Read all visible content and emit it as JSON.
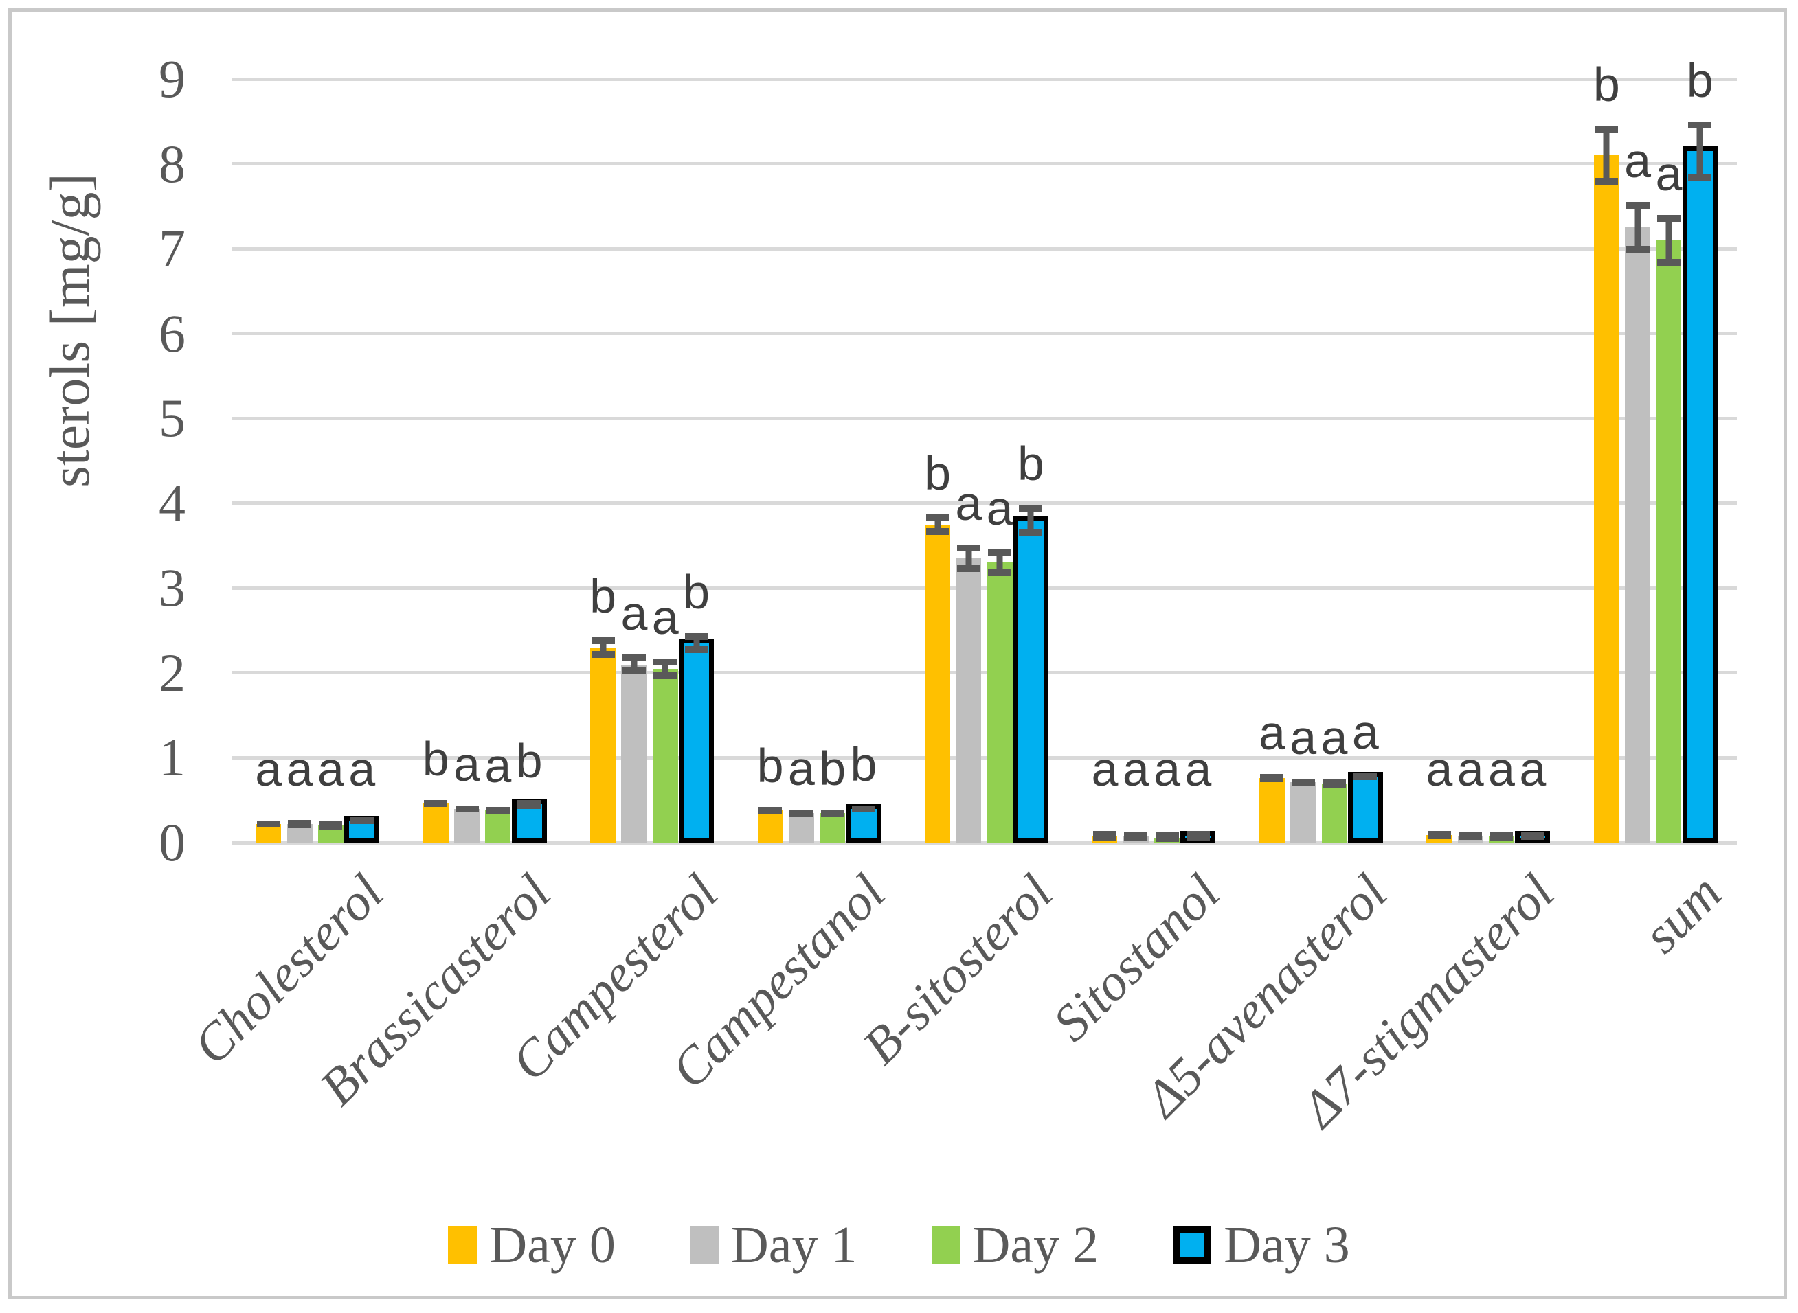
{
  "chart_data": {
    "type": "bar",
    "title": "",
    "xlabel": "",
    "ylabel": "sterols [mg/g]",
    "ylim": [
      0,
      9
    ],
    "ytick_step": 1,
    "yticks": [
      0,
      1,
      2,
      3,
      4,
      5,
      6,
      7,
      8,
      9
    ],
    "grid": true,
    "legend_position": "bottom",
    "categories": [
      "Cholesterol",
      "Brassicasterol",
      "Campesterol",
      "Campestanol",
      "B-sitosterol",
      "Sitostanol",
      "Δ5-avenasterol",
      "Δ7-stigmasterol",
      "sum"
    ],
    "series": [
      {
        "name": "Day 0",
        "color": "#FFC000",
        "values": [
          0.22,
          0.46,
          2.3,
          0.38,
          3.75,
          0.08,
          0.76,
          0.09,
          8.1
        ],
        "errors": [
          0.04,
          0.04,
          0.12,
          0.04,
          0.12,
          0.02,
          0.05,
          0.03,
          0.35
        ],
        "letters": [
          "a",
          "b",
          "b",
          "b",
          "b",
          "a",
          "a",
          "a",
          "b"
        ]
      },
      {
        "name": "Day 1",
        "color": "#BFBFBF",
        "values": [
          0.22,
          0.4,
          2.1,
          0.35,
          3.35,
          0.07,
          0.71,
          0.08,
          7.25
        ],
        "errors": [
          0.03,
          0.04,
          0.12,
          0.04,
          0.16,
          0.02,
          0.04,
          0.03,
          0.3
        ],
        "letters": [
          "a",
          "a",
          "a",
          "a",
          "a",
          "a",
          "a",
          "a",
          "a"
        ]
      },
      {
        "name": "Day 2",
        "color": "#92D050",
        "values": [
          0.2,
          0.38,
          2.05,
          0.35,
          3.3,
          0.06,
          0.7,
          0.07,
          7.1
        ],
        "errors": [
          0.03,
          0.04,
          0.12,
          0.04,
          0.16,
          0.02,
          0.05,
          0.03,
          0.3
        ],
        "letters": [
          "a",
          "a",
          "a",
          "b",
          "a",
          "a",
          "a",
          "a",
          "a"
        ]
      },
      {
        "name": "Day 3",
        "color": "#00B0F0",
        "outline_color": "#000000",
        "values": [
          0.26,
          0.45,
          2.35,
          0.4,
          3.8,
          0.08,
          0.78,
          0.08,
          8.15
        ],
        "errors": [
          0.04,
          0.03,
          0.12,
          0.04,
          0.18,
          0.02,
          0.04,
          0.03,
          0.35
        ],
        "letters": [
          "a",
          "b",
          "b",
          "b",
          "b",
          "a",
          "a",
          "a",
          "b"
        ]
      }
    ],
    "error_bar_color": "#595959",
    "letter_color": "#3F3F3F",
    "grid_color": "#D9D9D9",
    "axis_text_color": "#595959",
    "frame_border_color": "#C9C9C9"
  }
}
